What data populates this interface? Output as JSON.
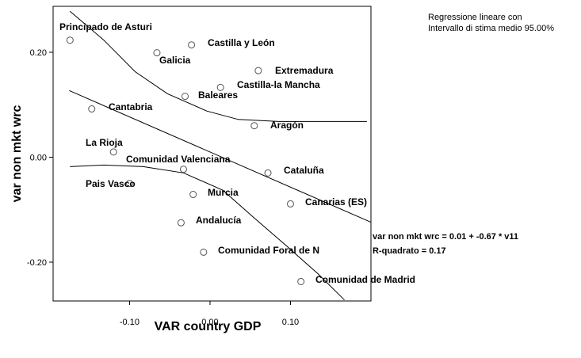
{
  "chart_data": {
    "type": "scatter",
    "x_label": "VAR country GDP",
    "y_label": "var non mkt wrc",
    "xlim": [
      -0.195,
      0.2
    ],
    "ylim": [
      -0.274,
      0.2875
    ],
    "xticks": [
      {
        "value": -0.1,
        "label": "-0.10"
      },
      {
        "value": 0,
        "label": "0.00"
      },
      {
        "value": 0.1,
        "label": "0.10"
      }
    ],
    "yticks": [
      {
        "value": 0.2,
        "label": "0.20"
      },
      {
        "value": 0,
        "label": "0.00"
      },
      {
        "value": -0.2,
        "label": "-0.20"
      }
    ],
    "legend_lines": [
      "Regressione lineare con",
      "Intervallo di stima medio 95.00%"
    ],
    "equation": "var non mkt wrc = 0.01 + -0.67 * v11",
    "r_squared": "R-quadrato = 0.17",
    "points": {
      "labels": [
        "Principado de Asturi",
        "Galicia",
        "Castilla y León",
        "Extremadura",
        "Castilla-la Mancha",
        "Baleares",
        "Cantabria",
        "Aragón",
        "La Rioja",
        "Comunidad Valenciana",
        "Cataluña",
        "Pais Vasco",
        "Murcia",
        "Canarias (ES)",
        "Andalucía",
        "Comunidad Foral de N",
        "Comunidad de Madrid"
      ],
      "x": [
        -0.174,
        -0.066,
        -0.023,
        0.06,
        0.013,
        -0.031,
        -0.147,
        0.055,
        -0.12,
        -0.033,
        0.072,
        -0.1,
        -0.021,
        0.1,
        -0.036,
        -0.008,
        0.113
      ],
      "y": [
        0.223,
        0.199,
        0.214,
        0.165,
        0.133,
        0.116,
        0.092,
        0.06,
        0.01,
        -0.023,
        -0.03,
        -0.05,
        -0.071,
        -0.089,
        -0.125,
        -0.181,
        -0.237
      ],
      "color": "#555555"
    },
    "lines": [
      {
        "x": [
          -0.175,
          0.2
        ],
        "values": [
          0.127,
          -0.124
        ],
        "color": "#000000"
      },
      {
        "x": [
          -0.174,
          -0.132,
          -0.093,
          -0.053,
          -0.004,
          0.035,
          0.085,
          0.154,
          0.195
        ],
        "values": [
          0.278,
          0.223,
          0.163,
          0.121,
          0.088,
          0.072,
          0.068,
          0.068,
          0.068
        ],
        "color": "#000000"
      },
      {
        "x": [
          -0.174,
          -0.132,
          -0.083,
          -0.033,
          0.016,
          0.055,
          0.095,
          0.134,
          0.167
        ],
        "values": [
          -0.018,
          -0.015,
          -0.018,
          -0.03,
          -0.063,
          -0.116,
          -0.169,
          -0.222,
          -0.272
        ],
        "color": "#000000"
      }
    ]
  }
}
